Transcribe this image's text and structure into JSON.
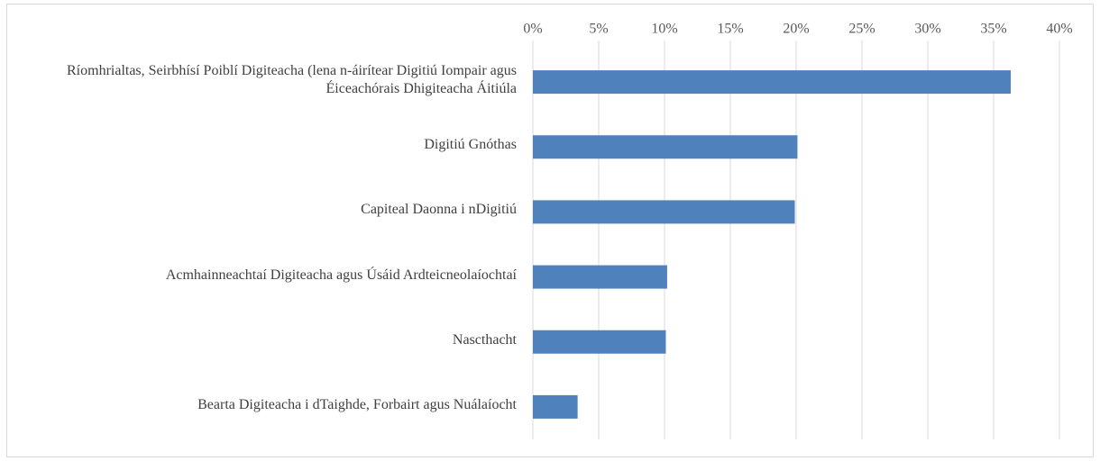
{
  "chart_data": {
    "type": "bar",
    "orientation": "horizontal",
    "categories": [
      "Ríomhrialtas, Seirbhísí Poiblí Digiteacha (lena n-áirítear Digitiú Iompair agus Éiceachórais Dhigiteacha Áitiúla",
      "Digitiú Gnóthas",
      "Capiteal Daonna i nDigitiú",
      "Acmhainneachtaí Digiteacha agus Úsáid Ardteicneolaíochtaí",
      "Nascthacht",
      "Bearta Digiteacha i dTaighde, Forbairt agus Nuálaíocht"
    ],
    "values": [
      36.3,
      20.1,
      19.9,
      10.2,
      10.1,
      3.4
    ],
    "color": "#4f81bd",
    "xlim": [
      0,
      40
    ],
    "xticks": [
      {
        "value": 0,
        "label": "0%"
      },
      {
        "value": 5,
        "label": "5%"
      },
      {
        "value": 10,
        "label": "10%"
      },
      {
        "value": 15,
        "label": "15%"
      },
      {
        "value": 20,
        "label": "20%"
      },
      {
        "value": 25,
        "label": "25%"
      },
      {
        "value": 30,
        "label": "30%"
      },
      {
        "value": 35,
        "label": "35%"
      },
      {
        "value": 40,
        "label": "40%"
      }
    ],
    "grid": true
  }
}
